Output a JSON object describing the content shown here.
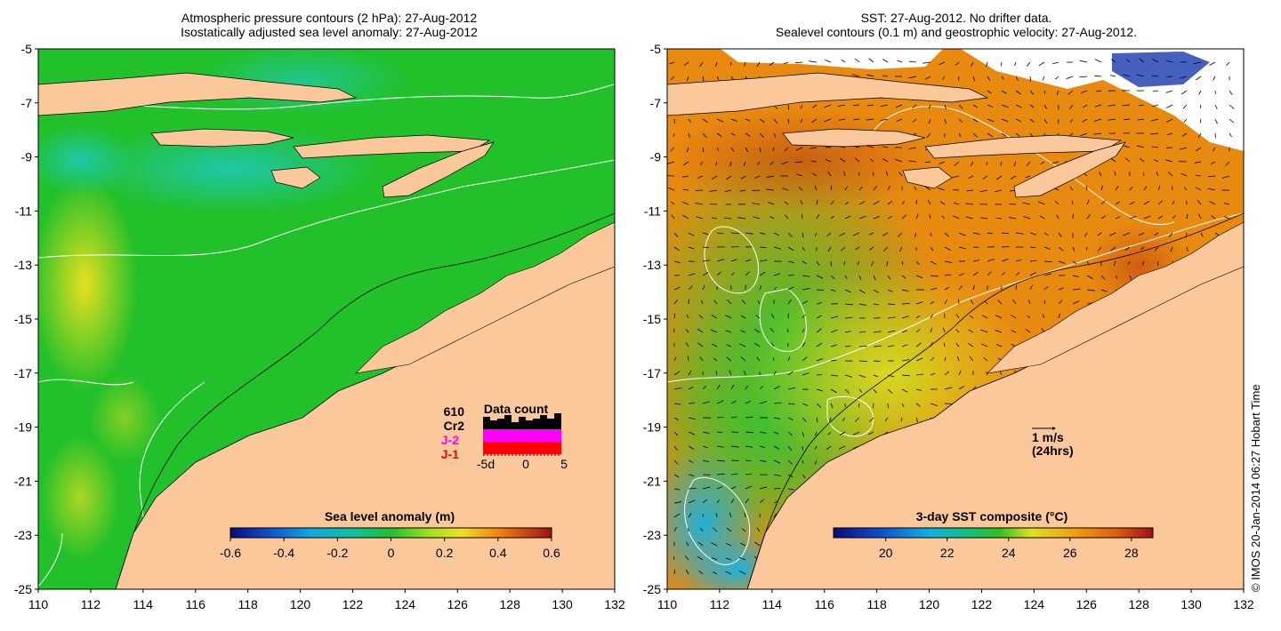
{
  "left_map": {
    "title_line1": "Atmospheric pressure contours (2 hPa): 27-Aug-2012",
    "title_line2": "Isostatically adjusted sea level anomaly: 27-Aug-2012",
    "lon_ticks": [
      "110",
      "112",
      "114",
      "116",
      "118",
      "120",
      "122",
      "124",
      "126",
      "128",
      "130",
      "132"
    ],
    "lat_ticks": [
      "-5",
      "-7",
      "-9",
      "-11",
      "-13",
      "-15",
      "-17",
      "-19",
      "-21",
      "-23",
      "-25"
    ],
    "colorbar": {
      "title": "Sea level anomaly (m)",
      "ticks": [
        "-0.6",
        "-0.4",
        "-0.2",
        "0",
        "0.2",
        "0.4",
        "0.6"
      ],
      "range": [
        -0.6,
        0.6
      ]
    },
    "data_count": {
      "title": "Data count",
      "labels": [
        "610",
        "Cr2",
        "J-2",
        "J-1"
      ],
      "label_colors": [
        "#000000",
        "#000000",
        "#ff00ff",
        "#ff0000"
      ],
      "x_ticks": [
        "-5d",
        "0",
        "5"
      ]
    }
  },
  "right_map": {
    "title_line1": "SST: 27-Aug-2012. No drifter data.",
    "title_line2": "Sealevel contours (0.1 m) and geostrophic velocity: 27-Aug-2012.",
    "lon_ticks": [
      "110",
      "112",
      "114",
      "116",
      "118",
      "120",
      "122",
      "124",
      "126",
      "128",
      "130",
      "132"
    ],
    "lat_ticks": [
      "-5",
      "-7",
      "-9",
      "-11",
      "-13",
      "-15",
      "-17",
      "-19",
      "-21",
      "-23",
      "-25"
    ],
    "colorbar": {
      "title": "3-day SST composite (°C)",
      "ticks": [
        "20",
        "22",
        "24",
        "26",
        "28"
      ],
      "range": [
        18.3,
        28.7
      ]
    },
    "velocity_scale": {
      "label": "1 m/s",
      "sublabel": "(24hrs)"
    }
  },
  "credit": "© IMOS 20-Jan-2014 06:27 Hobart Time",
  "colors": {
    "land": "#fac89a",
    "slanomaly_base": "#22c02a",
    "sst_base": "#e88a10"
  }
}
